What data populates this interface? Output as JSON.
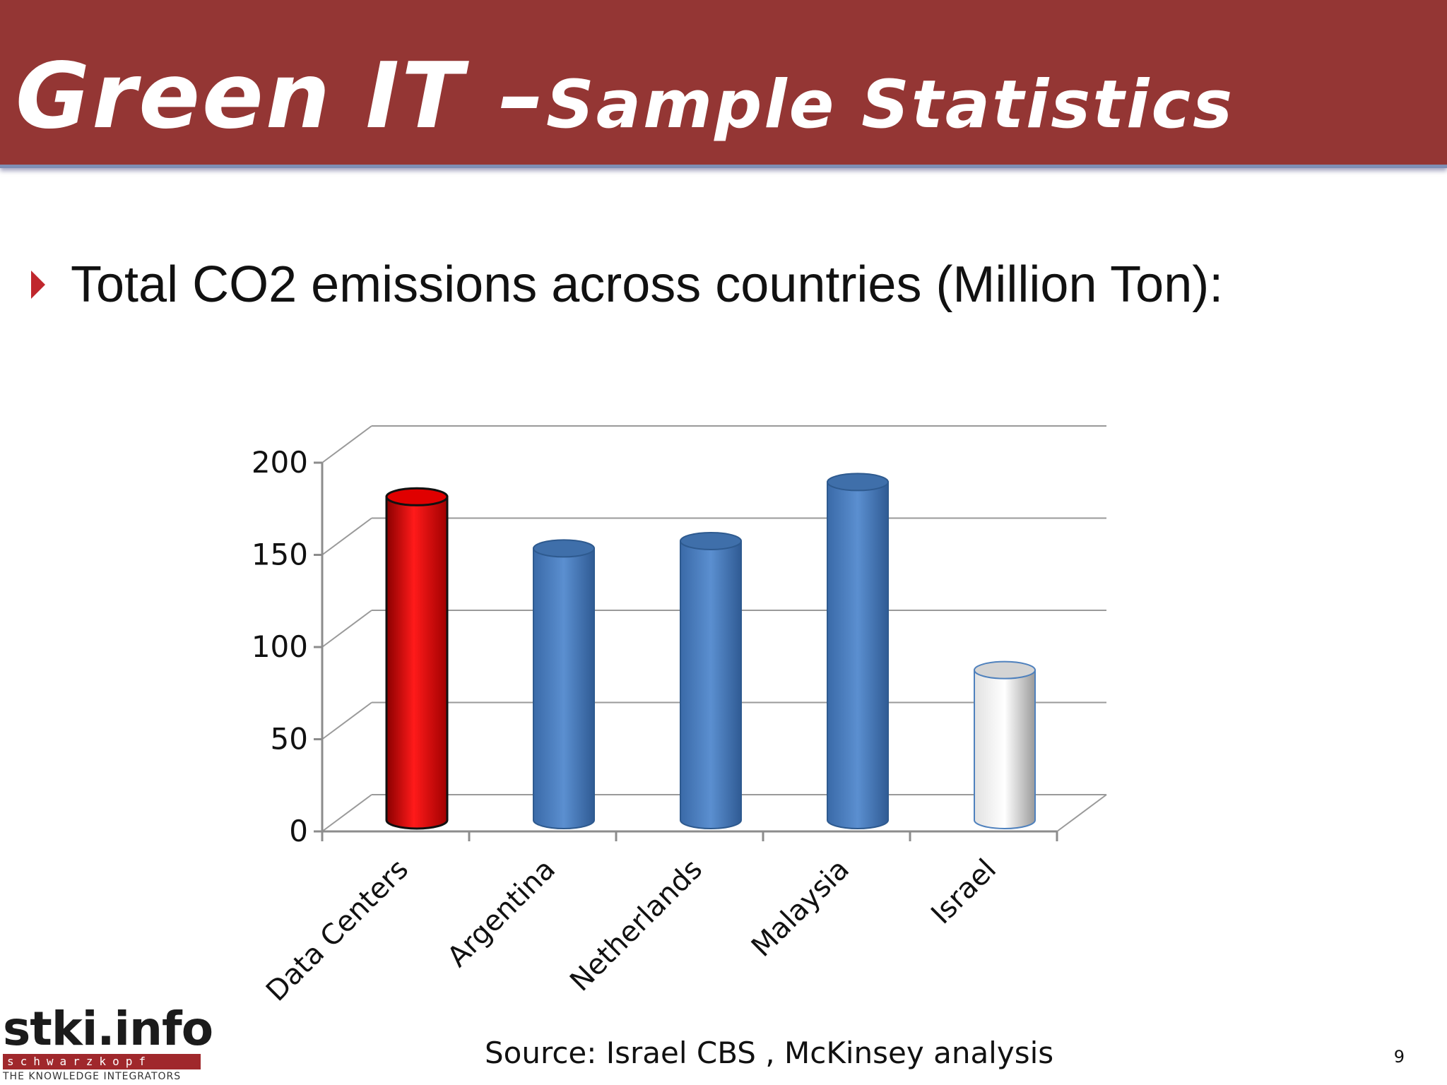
{
  "header": {
    "title_main": "Green  IT –",
    "title_sub": "Sample Statistics"
  },
  "bullet": {
    "text": "Total CO2 emissions across countries (Million Ton):"
  },
  "chart_data": {
    "type": "bar",
    "style": "3d-cylinder",
    "categories": [
      "Data Centers",
      "Argentina",
      "Netherlands",
      "Malaysia",
      "Israel"
    ],
    "values": [
      170,
      142,
      146,
      178,
      76
    ],
    "colors": [
      "#ff0000",
      "#4f81bd",
      "#4f81bd",
      "#4f81bd",
      "#ffffff"
    ],
    "ylim": [
      0,
      200
    ],
    "yticks": [
      0,
      50,
      100,
      150,
      200
    ],
    "grid": true,
    "legend": "none",
    "title": "",
    "xlabel": "",
    "ylabel": ""
  },
  "footer": {
    "source": "Source: Israel CBS , McKinsey analysis",
    "page_number": "9"
  },
  "logo": {
    "name": "stki.info",
    "strip": "schwarzkopf",
    "tagline": "THE KNOWLEDGE INTEGRATORS"
  }
}
